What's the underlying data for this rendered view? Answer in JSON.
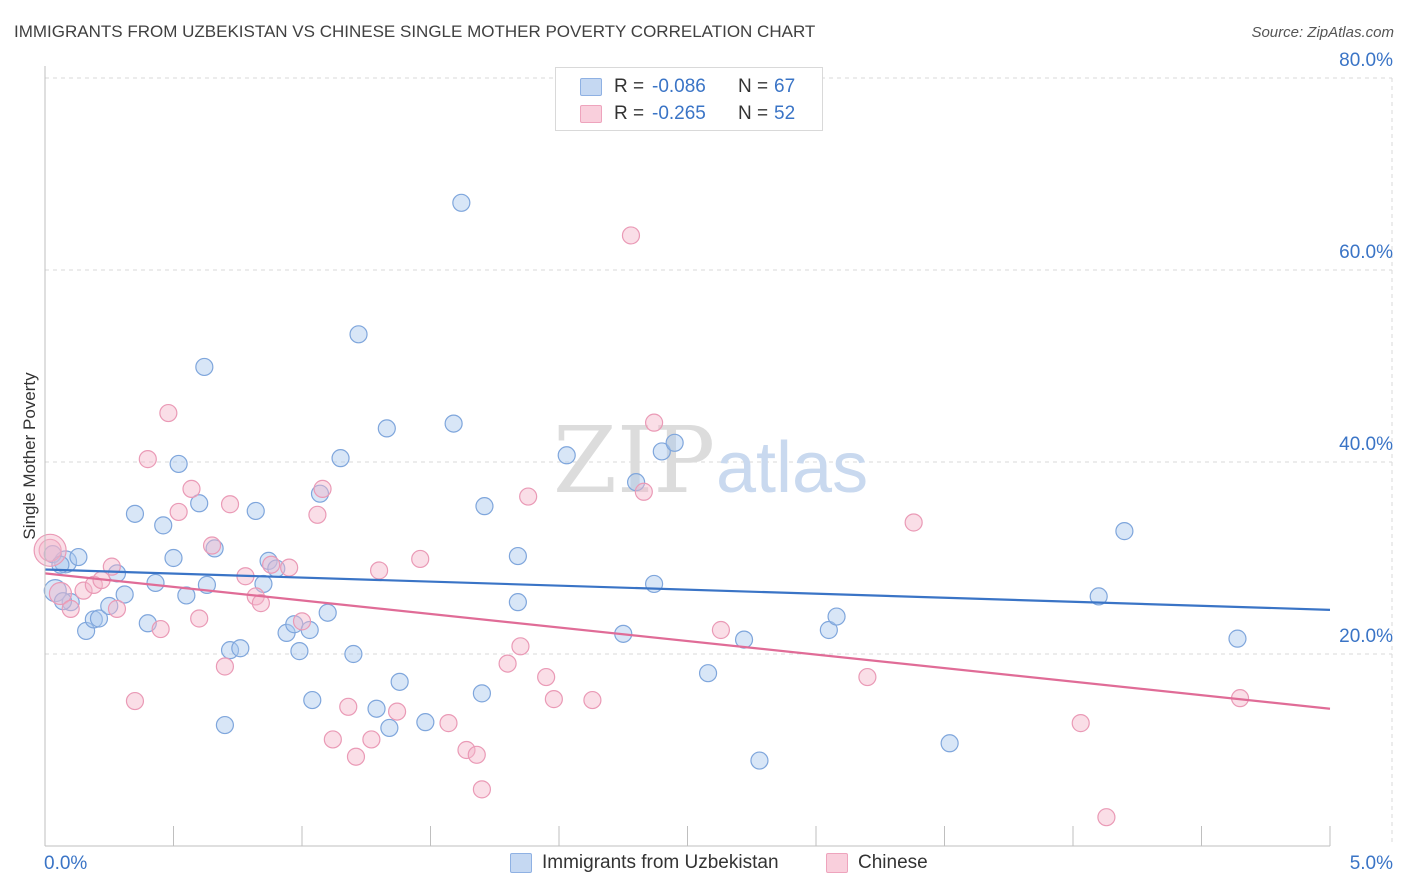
{
  "header": {
    "title": "IMMIGRANTS FROM UZBEKISTAN VS CHINESE SINGLE MOTHER POVERTY CORRELATION CHART",
    "source": "Source: ZipAtlas.com"
  },
  "watermark": {
    "part1": "ZIP",
    "part2": "atlas"
  },
  "colors": {
    "blue": "#3a74c6",
    "blue_fill": "#a9c7ee",
    "pink": "#e06c97",
    "pink_fill": "#f4b6c9",
    "grid": "#d8d8d8",
    "axis_label": "#3a74c6"
  },
  "legend_top": [
    {
      "r_label": "R =",
      "r_value": "-0.086",
      "n_label": "N =",
      "n_value": "67"
    },
    {
      "r_label": "R =",
      "r_value": "-0.265",
      "n_label": "N =",
      "n_value": "52"
    }
  ],
  "chart_data": {
    "type": "scatter",
    "title": "IMMIGRANTS FROM UZBEKISTAN VS CHINESE SINGLE MOTHER POVERTY CORRELATION CHART",
    "xlabel": "",
    "ylabel": "Single Mother Poverty",
    "xlim": [
      0,
      5
    ],
    "ylim": [
      0,
      80
    ],
    "x_tick_labels": [
      "0.0%",
      "5.0%"
    ],
    "y_tick_labels": [
      "20.0%",
      "40.0%",
      "60.0%",
      "80.0%"
    ],
    "y_ticks": [
      20,
      40,
      60,
      80
    ],
    "grid": true,
    "legend_placement": "top-center",
    "series": [
      {
        "name": "Immigrants from Uzbekistan",
        "trend": [
          [
            0,
            28.8
          ],
          [
            5,
            24.6
          ]
        ],
        "points": [
          [
            0.04,
            26.6
          ],
          [
            0.08,
            29.6
          ],
          [
            0.1,
            25.4
          ],
          [
            0.13,
            30.1
          ],
          [
            0.16,
            22.4
          ],
          [
            0.19,
            23.6
          ],
          [
            0.21,
            23.7
          ],
          [
            0.25,
            25.0
          ],
          [
            0.28,
            28.4
          ],
          [
            0.31,
            26.2
          ],
          [
            0.35,
            34.6
          ],
          [
            0.4,
            23.2
          ],
          [
            0.43,
            27.4
          ],
          [
            0.46,
            33.4
          ],
          [
            0.5,
            30.0
          ],
          [
            0.52,
            39.8
          ],
          [
            0.55,
            26.1
          ],
          [
            0.6,
            35.7
          ],
          [
            0.62,
            49.9
          ],
          [
            0.63,
            27.2
          ],
          [
            0.66,
            31.0
          ],
          [
            0.7,
            12.6
          ],
          [
            0.72,
            20.4
          ],
          [
            0.76,
            20.6
          ],
          [
            0.82,
            34.9
          ],
          [
            0.85,
            27.3
          ],
          [
            0.87,
            29.7
          ],
          [
            0.9,
            28.9
          ],
          [
            0.94,
            22.2
          ],
          [
            0.97,
            23.1
          ],
          [
            0.99,
            20.3
          ],
          [
            1.03,
            22.5
          ],
          [
            1.04,
            15.2
          ],
          [
            1.07,
            36.7
          ],
          [
            1.1,
            24.3
          ],
          [
            1.15,
            40.4
          ],
          [
            1.2,
            20.0
          ],
          [
            1.22,
            53.3
          ],
          [
            1.29,
            14.3
          ],
          [
            1.33,
            43.5
          ],
          [
            1.34,
            12.3
          ],
          [
            1.38,
            17.1
          ],
          [
            1.48,
            12.9
          ],
          [
            1.59,
            44.0
          ],
          [
            1.62,
            67.0
          ],
          [
            1.7,
            15.9
          ],
          [
            1.71,
            35.4
          ],
          [
            1.84,
            25.4
          ],
          [
            1.84,
            30.2
          ],
          [
            2.03,
            40.7
          ],
          [
            2.25,
            22.1
          ],
          [
            2.3,
            37.9
          ],
          [
            2.37,
            27.3
          ],
          [
            2.4,
            41.1
          ],
          [
            2.45,
            42.0
          ],
          [
            2.58,
            18.0
          ],
          [
            2.72,
            21.5
          ],
          [
            2.78,
            8.9
          ],
          [
            3.05,
            22.5
          ],
          [
            3.08,
            23.9
          ],
          [
            3.52,
            10.7
          ],
          [
            4.1,
            26.0
          ],
          [
            4.2,
            32.8
          ],
          [
            4.64,
            21.6
          ],
          [
            0.03,
            30.4
          ],
          [
            0.06,
            29.3
          ],
          [
            0.07,
            25.5
          ]
        ]
      },
      {
        "name": "Chinese",
        "trend": [
          [
            0,
            28.4
          ],
          [
            5,
            14.3
          ]
        ],
        "points": [
          [
            0.02,
            30.8
          ],
          [
            0.06,
            26.3
          ],
          [
            0.1,
            24.7
          ],
          [
            0.15,
            26.6
          ],
          [
            0.19,
            27.2
          ],
          [
            0.22,
            27.7
          ],
          [
            0.26,
            29.1
          ],
          [
            0.28,
            24.7
          ],
          [
            0.35,
            15.1
          ],
          [
            0.4,
            40.3
          ],
          [
            0.45,
            22.6
          ],
          [
            0.48,
            45.1
          ],
          [
            0.52,
            34.8
          ],
          [
            0.57,
            37.2
          ],
          [
            0.6,
            23.7
          ],
          [
            0.65,
            31.3
          ],
          [
            0.7,
            18.7
          ],
          [
            0.72,
            35.6
          ],
          [
            0.78,
            28.1
          ],
          [
            0.82,
            26.0
          ],
          [
            0.84,
            25.3
          ],
          [
            0.88,
            29.3
          ],
          [
            0.95,
            29.0
          ],
          [
            1.0,
            23.4
          ],
          [
            1.06,
            34.5
          ],
          [
            1.08,
            37.2
          ],
          [
            1.12,
            11.1
          ],
          [
            1.18,
            14.5
          ],
          [
            1.21,
            9.3
          ],
          [
            1.27,
            11.1
          ],
          [
            1.3,
            28.7
          ],
          [
            1.37,
            14.0
          ],
          [
            1.46,
            29.9
          ],
          [
            1.57,
            12.8
          ],
          [
            1.64,
            10.0
          ],
          [
            1.68,
            9.5
          ],
          [
            1.7,
            5.9
          ],
          [
            1.8,
            19.0
          ],
          [
            1.85,
            20.8
          ],
          [
            1.88,
            36.4
          ],
          [
            1.95,
            17.6
          ],
          [
            1.98,
            15.3
          ],
          [
            2.13,
            15.2
          ],
          [
            2.28,
            63.6
          ],
          [
            2.33,
            36.9
          ],
          [
            2.37,
            44.1
          ],
          [
            2.63,
            22.5
          ],
          [
            3.2,
            17.6
          ],
          [
            3.38,
            33.7
          ],
          [
            4.03,
            12.8
          ],
          [
            4.13,
            3.0
          ],
          [
            4.65,
            15.4
          ]
        ]
      }
    ]
  },
  "legend_bottom": [
    {
      "label": "Immigrants from Uzbekistan"
    },
    {
      "label": "Chinese"
    }
  ]
}
